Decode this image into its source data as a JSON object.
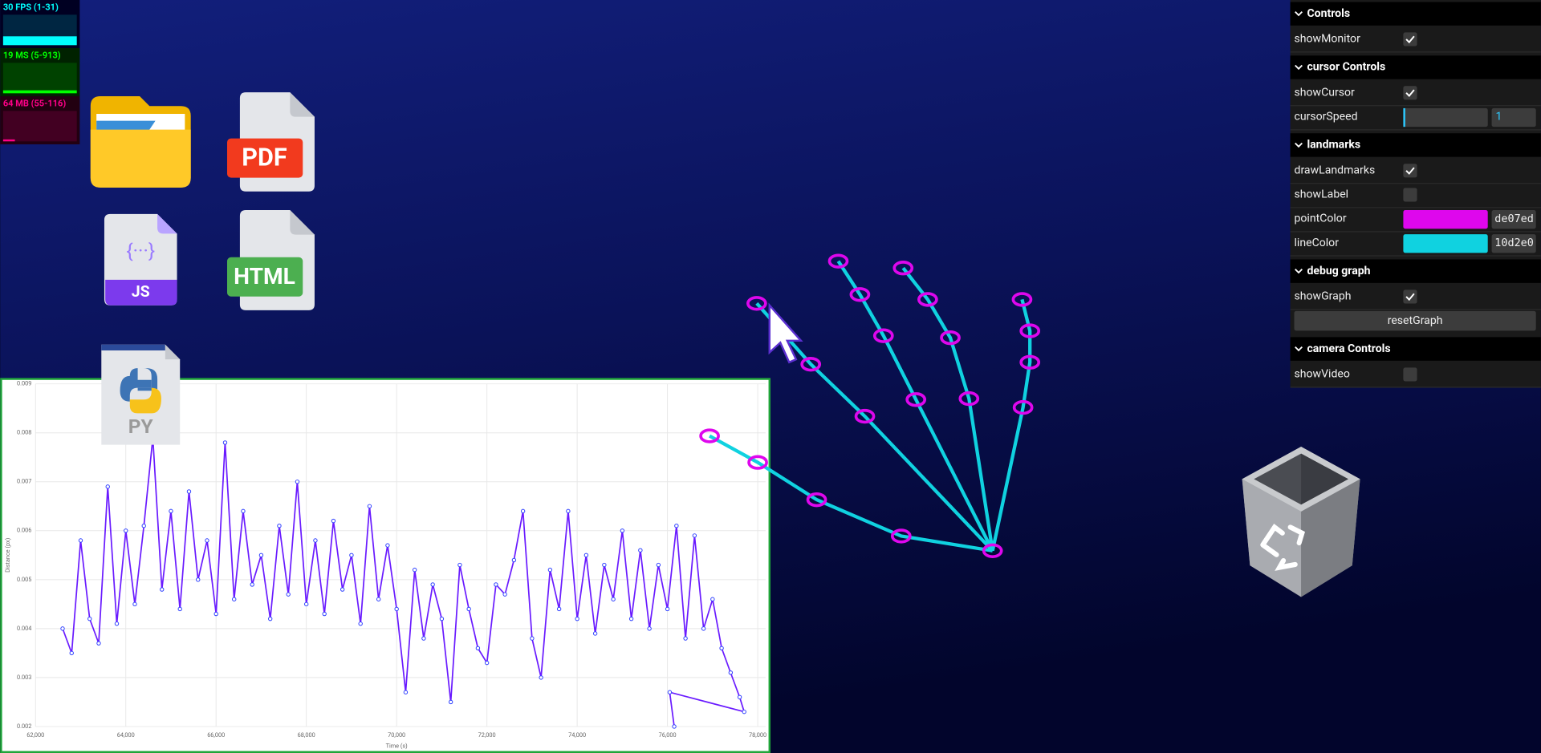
{
  "monitor": [
    {
      "label": "30 FPS (1-31)",
      "color": "#00ffff",
      "bg": "#000022"
    },
    {
      "label": "19 MS (5-913)",
      "color": "#00ff00",
      "bg": "#002200"
    },
    {
      "label": "64 MB (55-116)",
      "color": "#ff0088",
      "bg": "#220011"
    }
  ],
  "icons": {
    "pdf": "PDF",
    "html": "HTML",
    "js": "JS",
    "js_glyph": "{···}",
    "py": "PY"
  },
  "panel": {
    "folders": [
      {
        "title": "Controls",
        "rows": [
          {
            "kind": "checkbox",
            "label": "showMonitor",
            "checked": true
          }
        ]
      },
      {
        "title": "cursor Controls",
        "rows": [
          {
            "kind": "checkbox",
            "label": "showCursor",
            "checked": true
          },
          {
            "kind": "slider",
            "label": "cursorSpeed",
            "value": 1
          }
        ]
      },
      {
        "title": "landmarks",
        "rows": [
          {
            "kind": "checkbox",
            "label": "drawLandmarks",
            "checked": true
          },
          {
            "kind": "checkbox",
            "label": "showLabel",
            "checked": false
          },
          {
            "kind": "color",
            "label": "pointColor",
            "value": "de07ed"
          },
          {
            "kind": "color",
            "label": "lineColor",
            "value": "10d2e0"
          }
        ]
      },
      {
        "title": "debug graph",
        "rows": [
          {
            "kind": "checkbox",
            "label": "showGraph",
            "checked": true
          },
          {
            "kind": "button",
            "label": "resetGraph"
          }
        ]
      },
      {
        "title": "camera Controls",
        "rows": [
          {
            "kind": "checkbox",
            "label": "showVideo",
            "checked": false
          }
        ]
      }
    ]
  },
  "graph": {
    "type": "line",
    "xlabel": "Time (s)",
    "ylabel": "Distance (px)",
    "color": "#6a1bff",
    "point_color": "#2b3dff",
    "xlim": [
      62000,
      78000
    ],
    "xticks": [
      {
        "value": 62000,
        "label": "62,000"
      },
      {
        "value": 64000,
        "label": "64,000"
      },
      {
        "value": 66000,
        "label": "66,000"
      },
      {
        "value": 68000,
        "label": "68,000"
      },
      {
        "value": 70000,
        "label": "70,000"
      },
      {
        "value": 72000,
        "label": "72,000"
      },
      {
        "value": 74000,
        "label": "74,000"
      },
      {
        "value": 76000,
        "label": "76,000"
      },
      {
        "value": 78000,
        "label": "78,000"
      }
    ],
    "ylim": [
      0.002,
      0.009
    ],
    "yticks": [
      0.009,
      0.008,
      0.007,
      0.006,
      0.005,
      0.004,
      0.003,
      0.002
    ],
    "grid": true,
    "x": [
      62600,
      62800,
      63000,
      63200,
      63400,
      63600,
      63800,
      64000,
      64200,
      64400,
      64600,
      64800,
      65000,
      65200,
      65400,
      65600,
      65800,
      66000,
      66200,
      66400,
      66600,
      66800,
      67000,
      67200,
      67400,
      67600,
      67800,
      68000,
      68200,
      68400,
      68600,
      68800,
      69000,
      69200,
      69400,
      69600,
      69800,
      70000,
      70200,
      70400,
      70600,
      70800,
      71000,
      71200,
      71400,
      71600,
      71800,
      72000,
      72200,
      72400,
      72600,
      72800,
      73000,
      73200,
      73400,
      73600,
      73800,
      74000,
      74200,
      74400,
      74600,
      74800,
      75000,
      75200,
      75400,
      75600,
      75800,
      76000,
      76200,
      76400,
      76600,
      76800,
      77000,
      77200,
      77400,
      77600,
      77700,
      76050,
      76150
    ],
    "values": [
      0.004,
      0.0035,
      0.0058,
      0.0042,
      0.0037,
      0.0069,
      0.0041,
      0.006,
      0.0045,
      0.0061,
      0.0079,
      0.0048,
      0.0064,
      0.0044,
      0.0068,
      0.005,
      0.0058,
      0.0043,
      0.0078,
      0.0046,
      0.0064,
      0.0049,
      0.0055,
      0.0042,
      0.0061,
      0.0047,
      0.007,
      0.0045,
      0.0058,
      0.0043,
      0.0062,
      0.0048,
      0.0055,
      0.0041,
      0.0065,
      0.0046,
      0.0057,
      0.0044,
      0.0027,
      0.0052,
      0.0038,
      0.0049,
      0.0042,
      0.0025,
      0.0053,
      0.0044,
      0.0036,
      0.0033,
      0.0049,
      0.0047,
      0.0054,
      0.0064,
      0.0038,
      0.003,
      0.0052,
      0.0044,
      0.0064,
      0.0042,
      0.0055,
      0.0039,
      0.0053,
      0.0046,
      0.006,
      0.0042,
      0.0056,
      0.004,
      0.0053,
      0.0044,
      0.0061,
      0.0038,
      0.0059,
      0.004,
      0.0046,
      0.0036,
      0.0031,
      0.0026,
      0.0023,
      0.0027,
      0.002
    ]
  }
}
